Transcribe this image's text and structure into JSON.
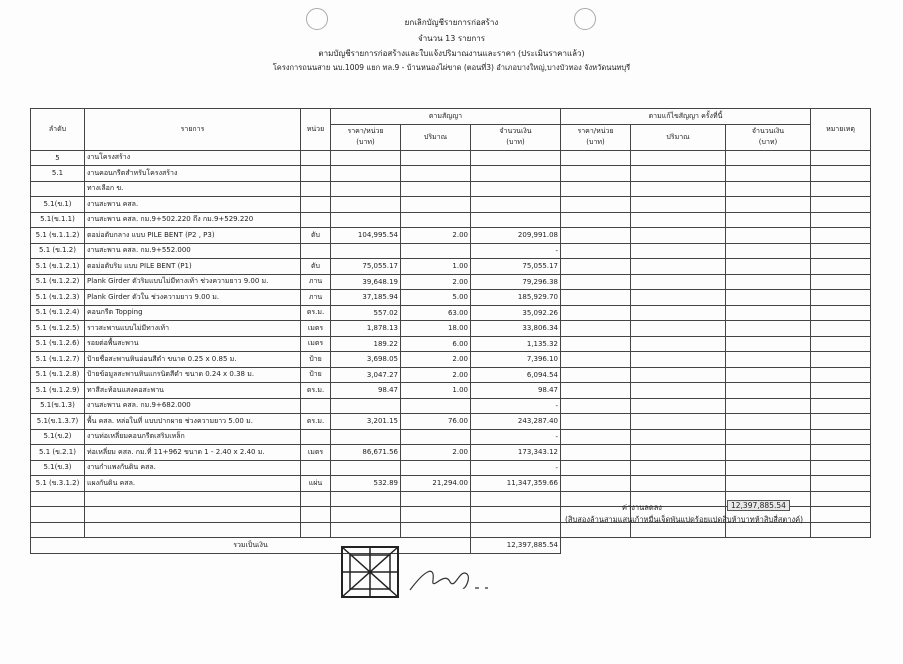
{
  "header": {
    "line1": "ยกเลิกบัญชีรายการก่อสร้าง",
    "line2": "จำนวน 13 รายการ",
    "line3": "ตามบัญชีรายการก่อสร้างและใบแจ้งปริมาณงานและราคา (ประเมินราคาแล้ว)",
    "line4": "โครงการถนนสาย นบ.1009 แยก ทล.9 - บ้านหนองไผ่ขาด (ตอนที่3) อำเภอบางใหญ่,บางบัวทอง จังหวัดนนทบุรี"
  },
  "table": {
    "headers": {
      "seq": "ลำดับ",
      "item": "รายการ",
      "unit": "หน่วย",
      "contract": "ตามสัญญา",
      "amended": "ตามแก้ไขสัญญา ครั้งที่นี้",
      "price": "ราคา/หน่วย",
      "baht": "(บาท)",
      "qty": "ปริมาณ",
      "amount": "จำนวนเงิน",
      "remark": "หมายเหตุ"
    },
    "rows": [
      [
        "5",
        "งานโครงสร้าง",
        "",
        "",
        "",
        ""
      ],
      [
        "5.1",
        "งานคอนกรีตสำหรับโครงสร้าง",
        "",
        "",
        "",
        ""
      ],
      [
        "",
        "ทางเลือก ข.",
        "",
        "",
        "",
        ""
      ],
      [
        "5.1(ข.1)",
        "งานสะพาน คสล.",
        "",
        "",
        "",
        ""
      ],
      [
        "5.1(ข.1.1)",
        "งานสะพาน คสล. กม.9+502.220 ถึง กม.9+529.220",
        "",
        "",
        "",
        ""
      ],
      [
        "5.1 (ข.1.1.2)",
        "ตอม่อตับกลาง แบบ PILE BENT (P2 , P3)",
        "ตับ",
        "104,995.54",
        "2.00",
        "209,991.08"
      ],
      [
        "5.1 (ข.1.2)",
        "งานสะพาน คสล. กม.9+552.000",
        "",
        "",
        "",
        "-"
      ],
      [
        "5.1 (ข.1.2.1)",
        "ตอม่อตับริม แบบ PILE BENT (P1)",
        "ตับ",
        "75,055.17",
        "1.00",
        "75,055.17"
      ],
      [
        "5.1 (ข.1.2.2)",
        "Plank Girder ตัวริมแบบไม่มีทางเท้า ช่วงความยาว 9.00 ม.",
        "ภาน",
        "39,648.19",
        "2.00",
        "79,296.38"
      ],
      [
        "5.1 (ข.1.2.3)",
        "Plank Girder ตัวใน ช่วงความยาว 9.00 ม.",
        "ภาน",
        "37,185.94",
        "5.00",
        "185,929.70"
      ],
      [
        "5.1 (ข.1.2.4)",
        "คอนกรีต Topping",
        "ตร.ม.",
        "557.02",
        "63.00",
        "35,092.26"
      ],
      [
        "5.1 (ข.1.2.5)",
        "ราวสะพานแบบไม่มีทางเท้า",
        "เมตร",
        "1,878.13",
        "18.00",
        "33,806.34"
      ],
      [
        "5.1 (ข.1.2.6)",
        "รอยต่อพื้นสะพาน",
        "เมตร",
        "189.22",
        "6.00",
        "1,135.32"
      ],
      [
        "5.1 (ข.1.2.7)",
        "ป้ายชื่อสะพานหินอ่อนสีดำ ขนาด 0.25 x 0.85 ม.",
        "ป้าย",
        "3,698.05",
        "2.00",
        "7,396.10"
      ],
      [
        "5.1 (ข.1.2.8)",
        "ป้ายข้อมูลสะพานหินแกรนิตสีดำ ขนาด 0.24 x 0.38 ม.",
        "ป้าย",
        "3,047.27",
        "2.00",
        "6,094.54"
      ],
      [
        "5.1 (ข.1.2.9)",
        "ทาสีสะท้อนแสงคอสะพาน",
        "ตร.ม.",
        "98.47",
        "1.00",
        "98.47"
      ],
      [
        "5.1(ข.1.3)",
        "งานสะพาน คสล. กม.9+682.000",
        "",
        "",
        "",
        "-"
      ],
      [
        "5.1(ข.1.3.7)",
        "พื้น คสล. หล่อในที่ แบบปากผาย ช่วงความยาว 5.00 ม.",
        "ตร.ม.",
        "3,201.15",
        "76.00",
        "243,287.40"
      ],
      [
        "5.1(ข.2)",
        "งานท่อเหลี่ยมคอนกรีตเสริมเหล็ก",
        "",
        "",
        "",
        "-"
      ],
      [
        "5.1 (ข.2.1)",
        "ท่อเหลี่ยม คสล. กม.ที่ 11+962  ขนาด 1 - 2.40 x 2.40 ม.",
        "เมตร",
        "86,671.56",
        "2.00",
        "173,343.12"
      ],
      [
        "5.1(ข.3)",
        "งานกำแพงกันดิน คสล.",
        "",
        "",
        "",
        "-"
      ],
      [
        "5.1 (ข.3.1.2)",
        "แผงกันดิน คสล.",
        "แผ่น",
        "532.89",
        "21,294.00",
        "11,347,359.66"
      ],
      [
        "",
        "",
        "",
        "",
        "",
        ""
      ],
      [
        "",
        "",
        "",
        "",
        "",
        ""
      ],
      [
        "",
        "",
        "",
        "",
        "",
        ""
      ]
    ],
    "total_label": "รวมเป็นเงิน",
    "total_value": "12,397,885.54"
  },
  "footer": {
    "decrease_label": "ค่างานลดลง",
    "decrease_value": "12,397,885.54",
    "amount_words": "(สิบสองล้านสามแสนเก้าหมื่นเจ็ดพันแปดร้อยแปดสิบห้าบาทห้าสิบสี่สตางค์)"
  },
  "icons": {
    "stamp": "seal-stamp",
    "signature": "handwritten-signature"
  }
}
